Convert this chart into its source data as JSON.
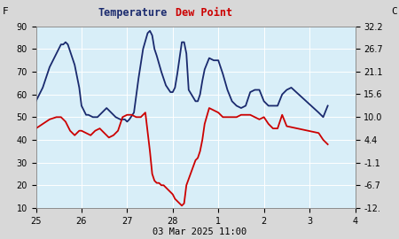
{
  "title_temp": "Temperature",
  "title_dew": "Dew Point",
  "ylabel_left": "F",
  "ylabel_right": "C",
  "xlabel": "03 Mar 2025 11:00",
  "ylim_left": [
    10,
    90
  ],
  "ylim_right": [
    -12.2,
    32.2
  ],
  "yticks_left": [
    10,
    20,
    30,
    40,
    50,
    60,
    70,
    80,
    90
  ],
  "yticks_right": [
    -12.2,
    -6.7,
    -1.1,
    4.4,
    10.0,
    15.6,
    21.1,
    26.7,
    32.2
  ],
  "ytick_right_labels": [
    "-12.",
    "-6.7",
    "-1.1",
    "4.4",
    "10.0",
    "15.6",
    "21.1",
    "26.7",
    "32.2"
  ],
  "xtick_pos": [
    25,
    26,
    27,
    28,
    29,
    30,
    31,
    32
  ],
  "xtick_labels": [
    "25",
    "26",
    "27",
    "28",
    "1",
    "2",
    "3",
    "4"
  ],
  "xlim": [
    25,
    32
  ],
  "fig_bg": "#d8d8d8",
  "plot_bg": "#d8eef8",
  "grid_color": "#ffffff",
  "temp_color": "#1a2a6e",
  "dew_color": "#cc0000",
  "temp_x": [
    25.0,
    25.15,
    25.3,
    25.45,
    25.55,
    25.6,
    25.65,
    25.7,
    25.75,
    25.85,
    25.95,
    26.0,
    26.1,
    26.15,
    26.25,
    26.35,
    26.45,
    26.55,
    26.65,
    26.75,
    26.85,
    26.95,
    27.0,
    27.05,
    27.15,
    27.25,
    27.35,
    27.45,
    27.5,
    27.55,
    27.6,
    27.65,
    27.75,
    27.85,
    27.95,
    28.0,
    28.05,
    28.1,
    28.15,
    28.2,
    28.25,
    28.3,
    28.35,
    28.5,
    28.55,
    28.6,
    28.65,
    28.7,
    28.8,
    28.9,
    29.0,
    29.05,
    29.1,
    29.2,
    29.3,
    29.4,
    29.5,
    29.6,
    29.7,
    29.8,
    29.9,
    30.0,
    30.1,
    30.2,
    30.3,
    30.4,
    30.5,
    30.6,
    31.2,
    31.3,
    31.4
  ],
  "temp_y": [
    57,
    63,
    72,
    78,
    82,
    82,
    83,
    82,
    79,
    73,
    63,
    55,
    51,
    51,
    50,
    50,
    52,
    54,
    52,
    50,
    49,
    49,
    48,
    49,
    52,
    67,
    80,
    87,
    88,
    86,
    80,
    77,
    70,
    64,
    61,
    61,
    63,
    69,
    76,
    83,
    83,
    78,
    62,
    57,
    57,
    60,
    66,
    71,
    76,
    75,
    75,
    72,
    69,
    62,
    57,
    55,
    54,
    55,
    61,
    62,
    62,
    57,
    55,
    55,
    55,
    60,
    62,
    63,
    52,
    50,
    55
  ],
  "dew_x": [
    25.0,
    25.15,
    25.3,
    25.45,
    25.55,
    25.65,
    25.75,
    25.85,
    25.95,
    26.0,
    26.1,
    26.2,
    26.3,
    26.4,
    26.5,
    26.6,
    26.7,
    26.8,
    26.9,
    27.0,
    27.05,
    27.1,
    27.2,
    27.3,
    27.4,
    27.5,
    27.55,
    27.6,
    27.65,
    27.7,
    27.75,
    27.8,
    27.85,
    27.9,
    28.0,
    28.05,
    28.1,
    28.15,
    28.2,
    28.25,
    28.3,
    28.5,
    28.55,
    28.6,
    28.65,
    28.7,
    28.8,
    28.9,
    29.0,
    29.1,
    29.2,
    29.3,
    29.4,
    29.5,
    29.6,
    29.7,
    29.8,
    29.9,
    30.0,
    30.1,
    30.2,
    30.3,
    30.4,
    30.5,
    31.2,
    31.3,
    31.4
  ],
  "dew_y": [
    45,
    47,
    49,
    50,
    50,
    48,
    44,
    42,
    44,
    44,
    43,
    42,
    44,
    45,
    43,
    41,
    42,
    44,
    50,
    51,
    51,
    51,
    50,
    50,
    52,
    35,
    25,
    22,
    21,
    21,
    20,
    20,
    19,
    18,
    16,
    14,
    13,
    12,
    11,
    12,
    20,
    31,
    32,
    35,
    40,
    47,
    54,
    53,
    52,
    50,
    50,
    50,
    50,
    51,
    51,
    51,
    50,
    49,
    50,
    47,
    45,
    45,
    51,
    46,
    43,
    40,
    38
  ]
}
